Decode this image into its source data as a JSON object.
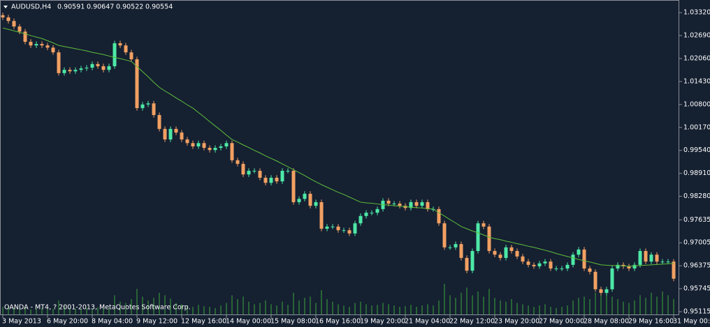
{
  "chart_data": {
    "type": "candlestick",
    "title": "AUDUSD,H4",
    "header_prices": [
      0.90591,
      0.90647,
      0.90522,
      0.90554
    ],
    "watermark": "OANDA - MT4, ? 2001-2013, MetaQuotes Software Corp.",
    "colors": {
      "up": "#4de8a6",
      "down": "#f2a062"
    },
    "categories": [
      "3 May 2013",
      null,
      null,
      null,
      null,
      null,
      null,
      null,
      "6 May 20:00",
      null,
      null,
      null,
      null,
      null,
      null,
      null,
      "8 May 04:00",
      null,
      null,
      null,
      null,
      null,
      null,
      null,
      "9 May 12:00",
      null,
      null,
      null,
      null,
      null,
      null,
      null,
      "12 May 16:00",
      null,
      null,
      null,
      null,
      null,
      null,
      null,
      "14 May 00:00",
      null,
      null,
      null,
      null,
      null,
      null,
      null,
      "15 May 08:00",
      null,
      null,
      null,
      null,
      null,
      null,
      null,
      "16 May 16:00",
      null,
      null,
      null,
      null,
      null,
      null,
      null,
      "19 May 20:00",
      null,
      null,
      null,
      null,
      null,
      null,
      null,
      "21 May 04:00",
      null,
      null,
      null,
      null,
      null,
      null,
      null,
      "22 May 12:00",
      null,
      null,
      null,
      null,
      null,
      null,
      null,
      "23 May 20:00",
      null,
      null,
      null,
      null,
      null,
      null,
      null,
      "27 May 00:00",
      null,
      null,
      null,
      null,
      null,
      null,
      null,
      "28 May 08:00",
      null,
      null,
      null,
      null,
      null,
      null,
      null,
      "29 May 16:00",
      null,
      null,
      null,
      null,
      null,
      null,
      null,
      "31 May 00:00"
    ],
    "open": [
      1.0325,
      1.0319,
      1.0309,
      1.0294,
      1.028,
      1.0252,
      1.0242,
      1.0246,
      1.0242,
      1.0236,
      1.0223,
      1.0166,
      1.0175,
      1.0171,
      1.0175,
      1.0179,
      1.0181,
      1.0191,
      1.0185,
      1.0175,
      1.0185,
      1.0248,
      1.0242,
      1.0223,
      1.0204,
      1.007,
      1.008,
      1.0083,
      1.0051,
      1.0013,
      0.9984,
      1.0013,
      1.0003,
      0.9984,
      0.9974,
      0.9965,
      0.9974,
      0.9961,
      0.9955,
      0.9961,
      0.9965,
      0.9974,
      0.9927,
      0.9917,
      0.9888,
      0.9898,
      0.9898,
      0.9879,
      0.9865,
      0.9879,
      0.9869,
      0.9898,
      0.9898,
      0.9812,
      0.9821,
      0.9835,
      0.9802,
      0.9812,
      0.9739,
      0.9745,
      0.9745,
      0.9735,
      0.9735,
      0.9726,
      0.9754,
      0.9774,
      0.9783,
      0.9783,
      0.9793,
      0.9816,
      0.9808,
      0.9808,
      0.9802,
      0.9796,
      0.9812,
      0.9802,
      0.9812,
      0.9793,
      0.9793,
      0.9754,
      0.9688,
      0.9688,
      0.9697,
      0.9659,
      0.9624,
      0.9678,
      0.9754,
      0.9745,
      0.9678,
      0.9668,
      0.9659,
      0.9688,
      0.9678,
      0.9663,
      0.9649,
      0.964,
      0.9636,
      0.9644,
      0.9649,
      0.963,
      0.963,
      0.963,
      0.964,
      0.9668,
      0.9682,
      0.963,
      0.9621,
      0.9573,
      0.9563,
      0.9573,
      0.963,
      0.964,
      0.9636,
      0.963,
      0.964,
      0.9678,
      0.9649,
      0.9668,
      0.9649,
      0.9649,
      0.9649
    ],
    "high": [
      1.0332,
      1.0326,
      1.0316,
      1.0301,
      1.0287,
      1.0259,
      1.0253,
      1.0253,
      1.0249,
      1.0243,
      1.023,
      1.0182,
      1.0182,
      1.0182,
      1.0186,
      1.0188,
      1.0198,
      1.0198,
      1.0192,
      1.0192,
      1.0255,
      1.0255,
      1.0249,
      1.023,
      1.0211,
      1.0087,
      1.009,
      1.009,
      1.0058,
      1.002,
      1.002,
      1.002,
      1.001,
      0.9991,
      0.9981,
      0.9981,
      0.9981,
      0.9968,
      0.9968,
      0.9972,
      0.9981,
      0.9981,
      0.9934,
      0.9924,
      0.9905,
      0.9905,
      0.9905,
      0.9886,
      0.9886,
      0.9886,
      0.9905,
      0.9905,
      0.9905,
      0.9828,
      0.9842,
      0.9842,
      0.9819,
      0.9819,
      0.9752,
      0.9752,
      0.9752,
      0.9742,
      0.9742,
      0.9761,
      0.9781,
      0.979,
      0.979,
      0.98,
      0.9823,
      0.9823,
      0.9815,
      0.9815,
      0.9809,
      0.9819,
      0.9819,
      0.9819,
      0.9819,
      0.98,
      0.98,
      0.9761,
      0.9695,
      0.9704,
      0.9704,
      0.9666,
      0.9685,
      0.9761,
      0.9761,
      0.9752,
      0.9685,
      0.9675,
      0.9695,
      0.9695,
      0.9685,
      0.967,
      0.9656,
      0.9647,
      0.9651,
      0.9656,
      0.9656,
      0.9637,
      0.9637,
      0.9647,
      0.9675,
      0.9689,
      0.9689,
      0.9637,
      0.9628,
      0.958,
      0.958,
      0.9637,
      0.9647,
      0.9647,
      0.9643,
      0.9647,
      0.9685,
      0.9685,
      0.9675,
      0.9675,
      0.9656,
      0.9656,
      0.9656
    ],
    "low": [
      1.0312,
      1.0302,
      1.0287,
      1.0273,
      1.0245,
      1.0235,
      1.0235,
      1.0235,
      1.0229,
      1.0216,
      1.0159,
      1.0159,
      1.0164,
      1.0164,
      1.0168,
      1.0172,
      1.0174,
      1.0178,
      1.0168,
      1.0168,
      1.0178,
      1.0235,
      1.0216,
      1.0197,
      1.0063,
      1.0063,
      1.0073,
      1.0044,
      1.0006,
      0.9977,
      0.9977,
      0.9996,
      0.9977,
      0.9967,
      0.9958,
      0.9958,
      0.9954,
      0.9948,
      0.9948,
      0.9954,
      0.9958,
      0.992,
      0.991,
      0.9881,
      0.9881,
      0.9891,
      0.9872,
      0.9858,
      0.9858,
      0.9862,
      0.9862,
      0.9891,
      0.9805,
      0.9805,
      0.9814,
      0.9795,
      0.9795,
      0.9732,
      0.9732,
      0.9738,
      0.9728,
      0.9728,
      0.9719,
      0.9719,
      0.9747,
      0.9767,
      0.9776,
      0.9776,
      0.9786,
      0.9801,
      0.9801,
      0.9795,
      0.9789,
      0.9789,
      0.9795,
      0.9795,
      0.9786,
      0.9786,
      0.9747,
      0.9681,
      0.9681,
      0.9681,
      0.9652,
      0.9617,
      0.9617,
      0.9671,
      0.9738,
      0.9671,
      0.9661,
      0.9652,
      0.9652,
      0.9671,
      0.9656,
      0.9642,
      0.9633,
      0.9629,
      0.9629,
      0.9637,
      0.9623,
      0.9623,
      0.9623,
      0.9623,
      0.9633,
      0.9661,
      0.9623,
      0.9614,
      0.9566,
      0.9556,
      0.9556,
      0.9566,
      0.9623,
      0.9629,
      0.9623,
      0.9623,
      0.9633,
      0.9642,
      0.9642,
      0.9642,
      0.9642,
      0.9642,
      0.9595
    ],
    "close": [
      1.0319,
      1.0309,
      1.0294,
      1.028,
      1.0252,
      1.0242,
      1.0246,
      1.0242,
      1.0236,
      1.0223,
      1.0166,
      1.0175,
      1.0171,
      1.0175,
      1.0179,
      1.0181,
      1.0191,
      1.0185,
      1.0175,
      1.0185,
      1.0248,
      1.0242,
      1.0223,
      1.0204,
      1.007,
      1.008,
      1.0083,
      1.0051,
      1.0013,
      0.9984,
      1.0013,
      1.0003,
      0.9984,
      0.9974,
      0.9965,
      0.9974,
      0.9961,
      0.9955,
      0.9961,
      0.9965,
      0.9974,
      0.9927,
      0.9917,
      0.9888,
      0.9898,
      0.9898,
      0.9879,
      0.9865,
      0.9879,
      0.9869,
      0.9898,
      0.9898,
      0.9812,
      0.9821,
      0.9835,
      0.9802,
      0.9812,
      0.9739,
      0.9745,
      0.9745,
      0.9735,
      0.9735,
      0.9726,
      0.9754,
      0.9774,
      0.9783,
      0.9783,
      0.9793,
      0.9816,
      0.9808,
      0.9808,
      0.9802,
      0.9796,
      0.9812,
      0.9802,
      0.9812,
      0.9793,
      0.9793,
      0.9754,
      0.9688,
      0.9688,
      0.9697,
      0.9659,
      0.9624,
      0.9678,
      0.9754,
      0.9745,
      0.9678,
      0.9668,
      0.9659,
      0.9688,
      0.9678,
      0.9663,
      0.9649,
      0.964,
      0.9636,
      0.9644,
      0.9649,
      0.963,
      0.963,
      0.963,
      0.964,
      0.9668,
      0.9682,
      0.963,
      0.9621,
      0.9573,
      0.9563,
      0.9573,
      0.963,
      0.964,
      0.9636,
      0.963,
      0.964,
      0.9678,
      0.9649,
      0.9668,
      0.9649,
      0.9649,
      0.9649,
      0.9602
    ],
    "ma": {
      "color": "#5fbf3a",
      "values": [
        1.029,
        1.0286,
        1.0282,
        1.0278,
        1.0274,
        1.0269,
        1.0265,
        1.0261,
        1.0255,
        1.0249,
        1.0242,
        1.0239,
        1.0236,
        1.0233,
        1.023,
        1.0227,
        1.0223,
        1.022,
        1.0217,
        1.0213,
        1.0209,
        1.0206,
        1.0202,
        1.0198,
        1.0184,
        1.017,
        1.0156,
        1.0141,
        1.0127,
        1.0117,
        1.0108,
        1.0098,
        1.0089,
        1.0079,
        1.007,
        1.0058,
        1.0046,
        1.0033,
        1.0021,
        1.0009,
        0.9996,
        0.9984,
        0.9977,
        0.9969,
        0.9962,
        0.9954,
        0.9947,
        0.9939,
        0.9932,
        0.9925,
        0.9917,
        0.9909,
        0.9901,
        0.9893,
        0.9885,
        0.9876,
        0.9868,
        0.986,
        0.9853,
        0.9846,
        0.9839,
        0.9833,
        0.9826,
        0.9819,
        0.9812,
        0.981,
        0.9809,
        0.9807,
        0.9805,
        0.9804,
        0.9802,
        0.9801,
        0.98,
        0.9798,
        0.9797,
        0.9796,
        0.9794,
        0.9793,
        0.9783,
        0.9774,
        0.9764,
        0.9755,
        0.9745,
        0.9739,
        0.9733,
        0.9728,
        0.9722,
        0.9716,
        0.9712,
        0.9709,
        0.9705,
        0.9702,
        0.9698,
        0.9695,
        0.9691,
        0.9688,
        0.9684,
        0.968,
        0.9676,
        0.9671,
        0.9667,
        0.9663,
        0.9659,
        0.9655,
        0.9651,
        0.9648,
        0.9644,
        0.964,
        0.9639,
        0.9638,
        0.9638,
        0.9637,
        0.9636,
        0.9637,
        0.9638,
        0.9639,
        0.964,
        0.9641,
        0.9642,
        0.9643,
        0.9644
      ]
    },
    "volume": {
      "color": "#3da83a",
      "values": [
        12,
        14,
        10,
        9,
        11,
        8,
        9,
        10,
        8,
        9,
        22,
        14,
        10,
        9,
        8,
        10,
        9,
        11,
        9,
        10,
        30,
        20,
        18,
        24,
        40,
        28,
        22,
        26,
        34,
        30,
        25,
        18,
        16,
        14,
        12,
        15,
        13,
        12,
        10,
        14,
        18,
        30,
        24,
        28,
        20,
        16,
        18,
        22,
        16,
        14,
        20,
        15,
        34,
        22,
        26,
        28,
        18,
        38,
        24,
        20,
        16,
        14,
        12,
        18,
        20,
        16,
        14,
        15,
        18,
        16,
        14,
        12,
        13,
        15,
        12,
        14,
        16,
        14,
        22,
        48,
        30,
        26,
        34,
        42,
        30,
        36,
        28,
        40,
        26,
        22,
        20,
        24,
        18,
        16,
        14,
        12,
        14,
        16,
        12,
        10,
        12,
        14,
        22,
        26,
        28,
        24,
        34,
        40,
        30,
        28,
        24,
        20,
        18,
        22,
        30,
        26,
        34,
        28,
        36,
        30,
        24
      ]
    },
    "ylim": [
      0.9502,
      1.0359
    ],
    "yticks": [
      {
        "value": 1.0332,
        "label": "1.03320"
      },
      {
        "value": 1.0269,
        "label": "1.02690"
      },
      {
        "value": 1.0206,
        "label": "1.02060"
      },
      {
        "value": 1.0143,
        "label": "1.01430"
      },
      {
        "value": 1.008,
        "label": "1.00800"
      },
      {
        "value": 1.0017,
        "label": "1.00170"
      },
      {
        "value": 0.9954,
        "label": "0.99540"
      },
      {
        "value": 0.9891,
        "label": "0.98910"
      },
      {
        "value": 0.9828,
        "label": "0.98280"
      },
      0.97635,
      {
        "value": 0.97005,
        "label": "0.97005"
      },
      0.96375,
      0.95745,
      0.95115
    ]
  }
}
